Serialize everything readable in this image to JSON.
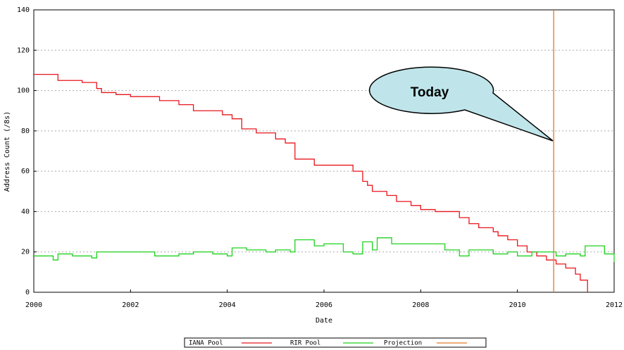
{
  "chart_data": {
    "type": "line",
    "step": "post",
    "xlabel": "Date",
    "ylabel": "Address Count (/8s)",
    "annotation": "Today",
    "xlim": [
      2000,
      2012
    ],
    "xticks": [
      2000,
      2002,
      2004,
      2006,
      2008,
      2010,
      2012
    ],
    "ylim": [
      0,
      140
    ],
    "yticks": [
      0,
      20,
      40,
      60,
      80,
      100,
      120,
      140
    ],
    "grid": true,
    "series": [
      {
        "name": "IANA Pool",
        "color": "#e8161d",
        "x": [
          2000,
          2000.5,
          2001.0,
          2001.3,
          2001.4,
          2001.7,
          2002.0,
          2002.6,
          2003.0,
          2003.3,
          2003.9,
          2004.1,
          2004.3,
          2004.6,
          2005.0,
          2005.2,
          2005.4,
          2005.8,
          2006.3,
          2006.6,
          2006.8,
          2006.9,
          2007.0,
          2007.3,
          2007.5,
          2007.8,
          2008.0,
          2008.3,
          2008.8,
          2009.0,
          2009.2,
          2009.5,
          2009.6,
          2009.8,
          2010.0,
          2010.2,
          2010.4,
          2010.6,
          2010.8,
          2011.0,
          2011.2,
          2011.3,
          2011.45
        ],
        "values": [
          108,
          105,
          104,
          101,
          99,
          98,
          97,
          95,
          93,
          90,
          88,
          86,
          81,
          79,
          76,
          74,
          66,
          63,
          63,
          60,
          55,
          53,
          50,
          48,
          45,
          43,
          41,
          40,
          37,
          34,
          32,
          30,
          28,
          26,
          23,
          20,
          18,
          16,
          14,
          12,
          9,
          6,
          0
        ]
      },
      {
        "name": "RIR Pool",
        "color": "#1ed21e",
        "x": [
          2000,
          2000.4,
          2000.5,
          2000.8,
          2001.2,
          2001.3,
          2001.6,
          2002.0,
          2002.5,
          2003.0,
          2003.3,
          2003.7,
          2004.0,
          2004.1,
          2004.4,
          2004.8,
          2005.0,
          2005.3,
          2005.4,
          2005.8,
          2006.0,
          2006.4,
          2006.6,
          2006.8,
          2007.0,
          2007.1,
          2007.4,
          2007.6,
          2008.0,
          2008.5,
          2008.8,
          2009.0,
          2009.5,
          2009.8,
          2010.0,
          2010.3,
          2010.6,
          2010.8,
          2011.0,
          2011.3,
          2011.4,
          2011.8,
          2012
        ],
        "values": [
          18,
          16,
          19,
          18,
          17,
          20,
          20,
          20,
          18,
          19,
          20,
          19,
          18,
          22,
          21,
          20,
          21,
          20,
          26,
          23,
          24,
          20,
          19,
          25,
          21,
          27,
          24,
          24,
          24,
          21,
          18,
          21,
          19,
          20,
          18,
          20,
          20,
          18,
          19,
          18,
          23,
          19,
          15
        ]
      },
      {
        "name": "Projection",
        "color": "#e07a2a",
        "x": [
          2010.75,
          2010.75
        ],
        "values": [
          0,
          140
        ]
      }
    ]
  }
}
